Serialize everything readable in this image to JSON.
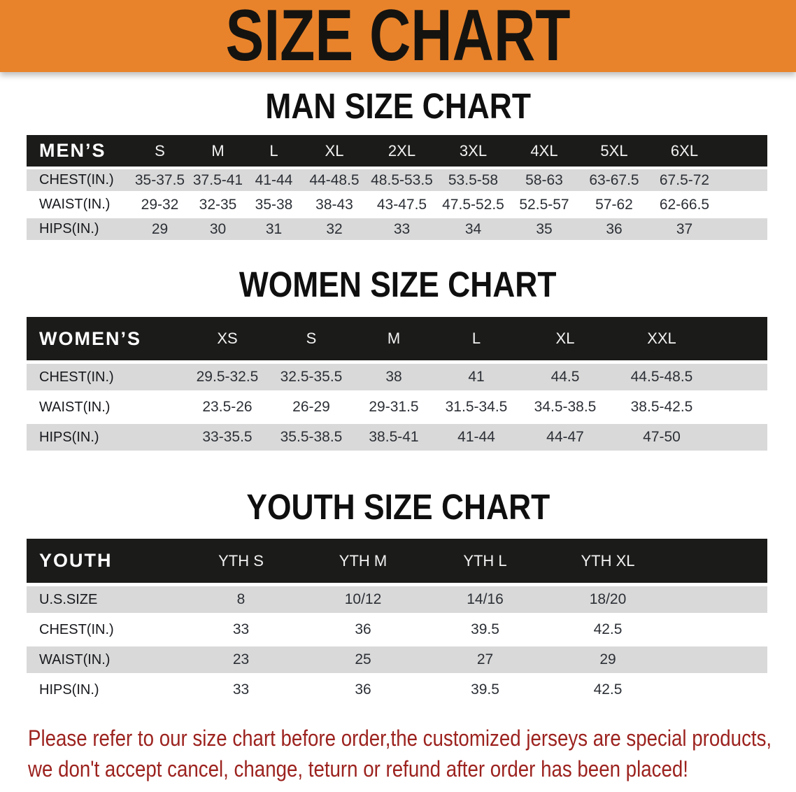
{
  "banner": {
    "title": "SIZE CHART",
    "bg_color": "#e8832b",
    "text_color": "#151310"
  },
  "footer": {
    "line1": "Please refer to our size chart before order,the customized jerseys are special products,",
    "line2": "we don't accept cancel, change, teturn or refund after order has been placed!",
    "color": "#9c231f"
  },
  "chart_data": [
    {
      "type": "table",
      "title": "MAN SIZE CHART",
      "header_label": "MEN’S",
      "columns": [
        "S",
        "M",
        "L",
        "XL",
        "2XL",
        "3XL",
        "4XL",
        "5XL",
        "6XL"
      ],
      "rows": [
        {
          "label": "CHEST(IN.)",
          "values": [
            "35-37.5",
            "37.5-41",
            "41-44",
            "44-48.5",
            "48.5-53.5",
            "53.5-58",
            "58-63",
            "63-67.5",
            "67.5-72"
          ]
        },
        {
          "label": "WAIST(IN.)",
          "values": [
            "29-32",
            "32-35",
            "35-38",
            "38-43",
            "43-47.5",
            "47.5-52.5",
            "52.5-57",
            "57-62",
            "62-66.5"
          ]
        },
        {
          "label": "HIPS(IN.)",
          "values": [
            "29",
            "30",
            "31",
            "32",
            "33",
            "34",
            "35",
            "36",
            "37"
          ]
        }
      ]
    },
    {
      "type": "table",
      "title": "WOMEN SIZE CHART",
      "header_label": "WOMEN’S",
      "columns": [
        "XS",
        "S",
        "M",
        "L",
        "XL",
        "XXL"
      ],
      "rows": [
        {
          "label": "CHEST(IN.)",
          "values": [
            "29.5-32.5",
            "32.5-35.5",
            "38",
            "41",
            "44.5",
            "44.5-48.5"
          ]
        },
        {
          "label": "WAIST(IN.)",
          "values": [
            "23.5-26",
            "26-29",
            "29-31.5",
            "31.5-34.5",
            "34.5-38.5",
            "38.5-42.5"
          ]
        },
        {
          "label": "HIPS(IN.)",
          "values": [
            "33-35.5",
            "35.5-38.5",
            "38.5-41",
            "41-44",
            "44-47",
            "47-50"
          ]
        }
      ]
    },
    {
      "type": "table",
      "title": "YOUTH SIZE CHART",
      "header_label": "YOUTH",
      "columns": [
        "YTH S",
        "YTH M",
        "YTH L",
        "YTH XL"
      ],
      "rows": [
        {
          "label": "U.S.SIZE",
          "values": [
            "8",
            "10/12",
            "14/16",
            "18/20"
          ]
        },
        {
          "label": "CHEST(IN.)",
          "values": [
            "33",
            "36",
            "39.5",
            "42.5"
          ]
        },
        {
          "label": "WAIST(IN.)",
          "values": [
            "23",
            "25",
            "27",
            "29"
          ]
        },
        {
          "label": "HIPS(IN.)",
          "values": [
            "33",
            "36",
            "39.5",
            "42.5"
          ]
        }
      ]
    }
  ]
}
